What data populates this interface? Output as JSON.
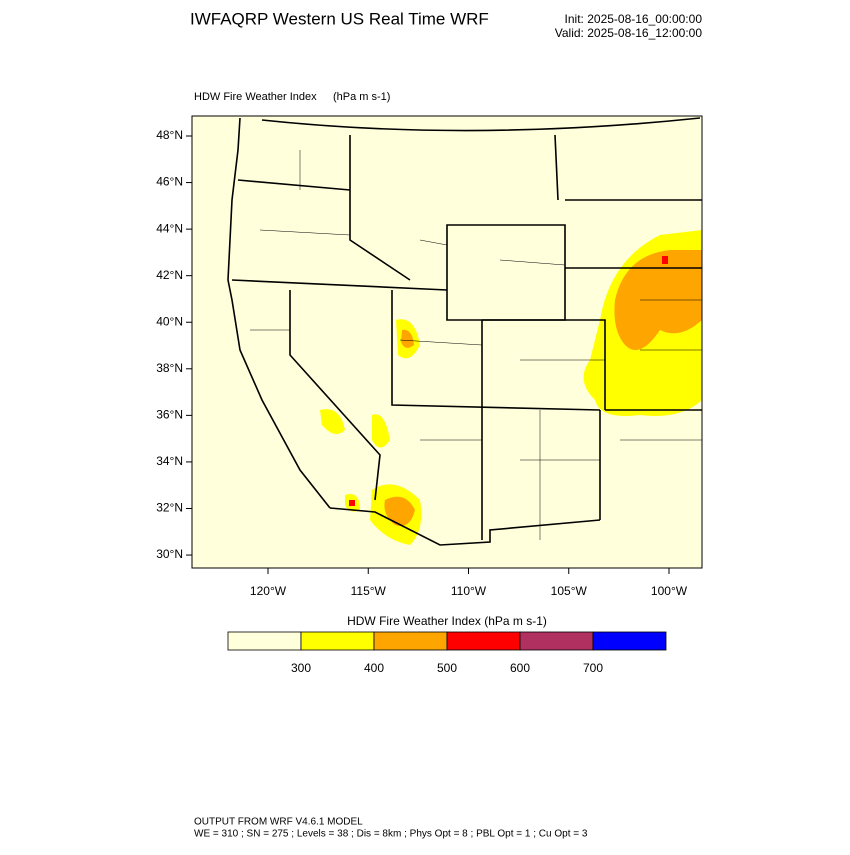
{
  "header": {
    "title": "IWFAQRP Western US Real Time WRF",
    "init": "Init: 2025-08-16_00:00:00",
    "valid": "Valid: 2025-08-16_12:00:00"
  },
  "map": {
    "title": "HDW Fire Weather Index",
    "units": "(hPa m s-1)",
    "lat_ticks": [
      {
        "value": 48,
        "label": "48°N"
      },
      {
        "value": 46,
        "label": "46°N"
      },
      {
        "value": 44,
        "label": "44°N"
      },
      {
        "value": 42,
        "label": "42°N"
      },
      {
        "value": 40,
        "label": "40°N"
      },
      {
        "value": 38,
        "label": "38°N"
      },
      {
        "value": 36,
        "label": "36°N"
      },
      {
        "value": 34,
        "label": "34°N"
      },
      {
        "value": 32,
        "label": "32°N"
      },
      {
        "value": 30,
        "label": "30°N"
      }
    ],
    "lon_ticks": [
      {
        "value": -120,
        "label": "120°W"
      },
      {
        "value": -115,
        "label": "115°W"
      },
      {
        "value": -110,
        "label": "110°W"
      },
      {
        "value": -105,
        "label": "105°W"
      },
      {
        "value": -100,
        "label": "100°W"
      }
    ]
  },
  "colorbar": {
    "title": "HDW Fire Weather Index (hPa m s-1)",
    "levels": [
      300,
      400,
      500,
      600,
      700
    ],
    "colors": [
      "#ffffdc",
      "#ffff00",
      "#ffa500",
      "#ff0000",
      "#b03060",
      "#0000ff"
    ]
  },
  "footer": {
    "line1": "OUTPUT FROM WRF V4.6.1 MODEL",
    "line2": "WE = 310 ; SN = 275 ; Levels = 38 ; Dis = 8km ; Phys Opt = 8 ; PBL Opt = 1 ; Cu Opt = 3"
  }
}
